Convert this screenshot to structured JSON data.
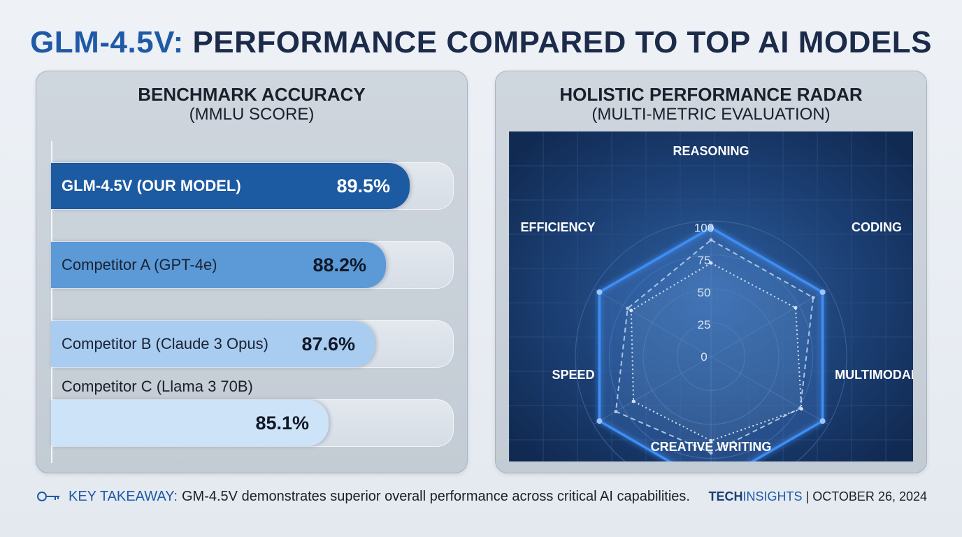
{
  "title": {
    "accent": "GLM-4.5V:",
    "rest": " PERFORMANCE COMPARED TO TOP AI MODELS"
  },
  "chart_data": [
    {
      "type": "bar",
      "orientation": "horizontal",
      "title": "BENCHMARK ACCURACY",
      "subtitle": "(MMLU SCORE)",
      "categories": [
        "GLM-4.5V (OUR MODEL)",
        "Competitor A (GPT-4e)",
        "Competitor B (Claude 3 Opus)",
        "Competitor C (Llama 3 70B)"
      ],
      "values": [
        89.5,
        88.2,
        87.6,
        85.1
      ],
      "value_labels": [
        "89.5%",
        "88.2%",
        "87.6%",
        "85.1%"
      ],
      "colors": [
        "#1c5aa2",
        "#5b9ad6",
        "#a9cdf0",
        "#cde4f8"
      ]
    },
    {
      "type": "radar",
      "title": "HOLISTIC PERFORMANCE RADAR",
      "subtitle": "(MULTI-METRIC EVALUATION)",
      "axes": [
        "REASONING",
        "CODING",
        "MULTIMODAL",
        "CREATIVE WRITING",
        "SPEED",
        "EFFICIENCY"
      ],
      "range": [
        0,
        100
      ],
      "ticks": [
        "0",
        "25",
        "50",
        "75",
        "100"
      ],
      "series": [
        {
          "values": [
            95,
            95,
            95,
            95,
            95,
            95
          ],
          "style": "solid",
          "color": "#3d8ef5"
        },
        {
          "values": [
            86,
            87,
            76,
            71,
            81,
            71
          ],
          "style": "dashed",
          "color": "#a8c4e6"
        },
        {
          "values": [
            69,
            72,
            77,
            62,
            66,
            68
          ],
          "style": "dotted",
          "color": "#d3e2f5"
        }
      ],
      "grid": true
    }
  ],
  "footer": {
    "takeaway_label": "KEY TAKEAWAY:",
    "takeaway_text": "GM-4.5V demonstrates superior overall performance across critical AI capabilities.",
    "icon": "key-icon",
    "brand_bold": "TECH",
    "brand_rest": "INSIGHTS",
    "separator": "|",
    "date": "OCTOBER 26, 2024"
  }
}
